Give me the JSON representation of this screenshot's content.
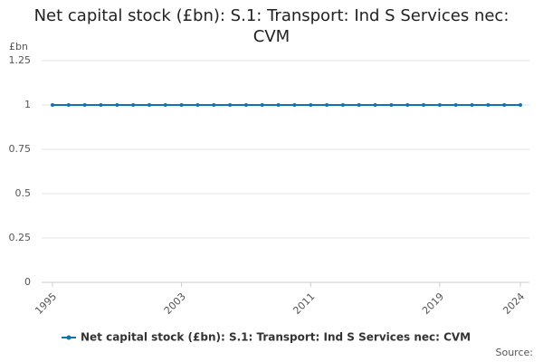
{
  "chart_data": {
    "type": "line",
    "title": "Net capital stock (£bn): S.1: Transport: Ind S Services nec: CVM",
    "y_label": "£bn",
    "source": "Source:",
    "x": [
      1995,
      1996,
      1997,
      1998,
      1999,
      2000,
      2001,
      2002,
      2003,
      2004,
      2005,
      2006,
      2007,
      2008,
      2009,
      2010,
      2011,
      2012,
      2013,
      2014,
      2015,
      2016,
      2017,
      2018,
      2019,
      2020,
      2021,
      2022,
      2023,
      2024
    ],
    "series": [
      {
        "name": "Net capital stock (£bn): S.1: Transport: Ind S Services nec: CVM",
        "color": "#0f75b0",
        "values": [
          1,
          1,
          1,
          1,
          1,
          1,
          1,
          1,
          1,
          1,
          1,
          1,
          1,
          1,
          1,
          1,
          1,
          1,
          1,
          1,
          1,
          1,
          1,
          1,
          1,
          1,
          1,
          1,
          1,
          1
        ]
      }
    ],
    "xlim": [
      1995,
      2024
    ],
    "xticks": [
      1995,
      2003,
      2011,
      2019,
      2024
    ],
    "ylim": [
      0,
      1.25
    ],
    "yticks": [
      0,
      0.25,
      0.5,
      0.75,
      1,
      1.25
    ],
    "grid": true
  }
}
